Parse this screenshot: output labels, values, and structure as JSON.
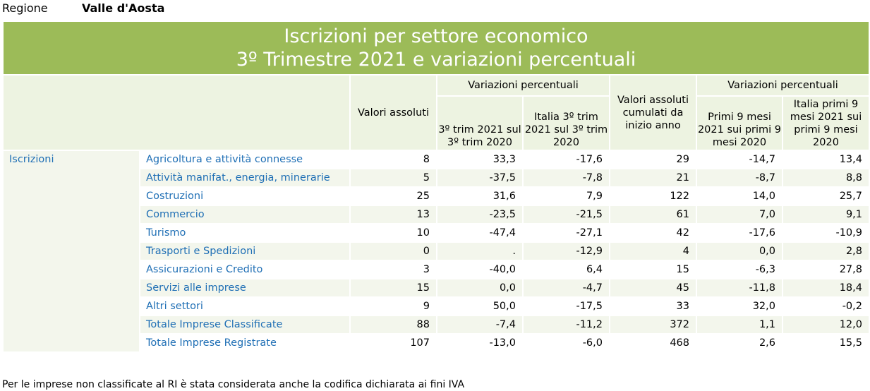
{
  "region": {
    "label": "Regione",
    "value": "Valle d'Aosta"
  },
  "title": {
    "line1": "Iscrizioni per settore economico",
    "line2": "3º Trimestre 2021 e variazioni percentuali"
  },
  "headers": {
    "valori_assoluti": "Valori assoluti",
    "var_perc_1": "Variazioni percentuali",
    "trim_2021": "3º trim 2021 sul 3º trim 2020",
    "italia_trim": "Italia 3º trim 2021 sul 3º trim 2020",
    "cumulati": "Valori assoluti cumulati da inizio anno",
    "var_perc_2": "Variazioni percentuali",
    "primi9": "Primi 9 mesi 2021 sui primi 9 mesi 2020",
    "italia_primi9": "Italia primi 9 mesi 2021 sui primi 9 mesi 2020"
  },
  "section": "Iscrizioni",
  "rows": [
    {
      "sector": "Agricoltura e attività connesse",
      "v1": "8",
      "v2": "33,3",
      "v3": "-17,6",
      "v4": "29",
      "v5": "-14,7",
      "v6": "13,4"
    },
    {
      "sector": "Attività manifat., energia, minerarie",
      "v1": "5",
      "v2": "-37,5",
      "v3": "-7,8",
      "v4": "21",
      "v5": "-8,7",
      "v6": "8,8"
    },
    {
      "sector": "Costruzioni",
      "v1": "25",
      "v2": "31,6",
      "v3": "7,9",
      "v4": "122",
      "v5": "14,0",
      "v6": "25,7"
    },
    {
      "sector": "Commercio",
      "v1": "13",
      "v2": "-23,5",
      "v3": "-21,5",
      "v4": "61",
      "v5": "7,0",
      "v6": "9,1"
    },
    {
      "sector": "Turismo",
      "v1": "10",
      "v2": "-47,4",
      "v3": "-27,1",
      "v4": "42",
      "v5": "-17,6",
      "v6": "-10,9"
    },
    {
      "sector": "Trasporti e Spedizioni",
      "v1": "0",
      "v2": ".",
      "v3": "-12,9",
      "v4": "4",
      "v5": "0,0",
      "v6": "2,8"
    },
    {
      "sector": "Assicurazioni e Credito",
      "v1": "3",
      "v2": "-40,0",
      "v3": "6,4",
      "v4": "15",
      "v5": "-6,3",
      "v6": "27,8"
    },
    {
      "sector": "Servizi alle imprese",
      "v1": "15",
      "v2": "0,0",
      "v3": "-4,7",
      "v4": "45",
      "v5": "-11,8",
      "v6": "18,4"
    },
    {
      "sector": "Altri settori",
      "v1": "9",
      "v2": "50,0",
      "v3": "-17,5",
      "v4": "33",
      "v5": "32,0",
      "v6": "-0,2"
    },
    {
      "sector": "Totale Imprese Classificate",
      "v1": "88",
      "v2": "-7,4",
      "v3": "-11,2",
      "v4": "372",
      "v5": "1,1",
      "v6": "12,0"
    },
    {
      "sector": "Totale Imprese Registrate",
      "v1": "107",
      "v2": "-13,0",
      "v3": "-6,0",
      "v4": "468",
      "v5": "2,6",
      "v6": "15,5"
    }
  ],
  "footnote": "Per le imprese non classificate al RI è stata considerata anche la codifica dichiarata ai fini IVA",
  "colors": {
    "title_bg": "#9cbb58",
    "header_bg": "#edf3e1",
    "alt_row_bg": "#f3f6ec",
    "link": "#1f6fb5"
  }
}
